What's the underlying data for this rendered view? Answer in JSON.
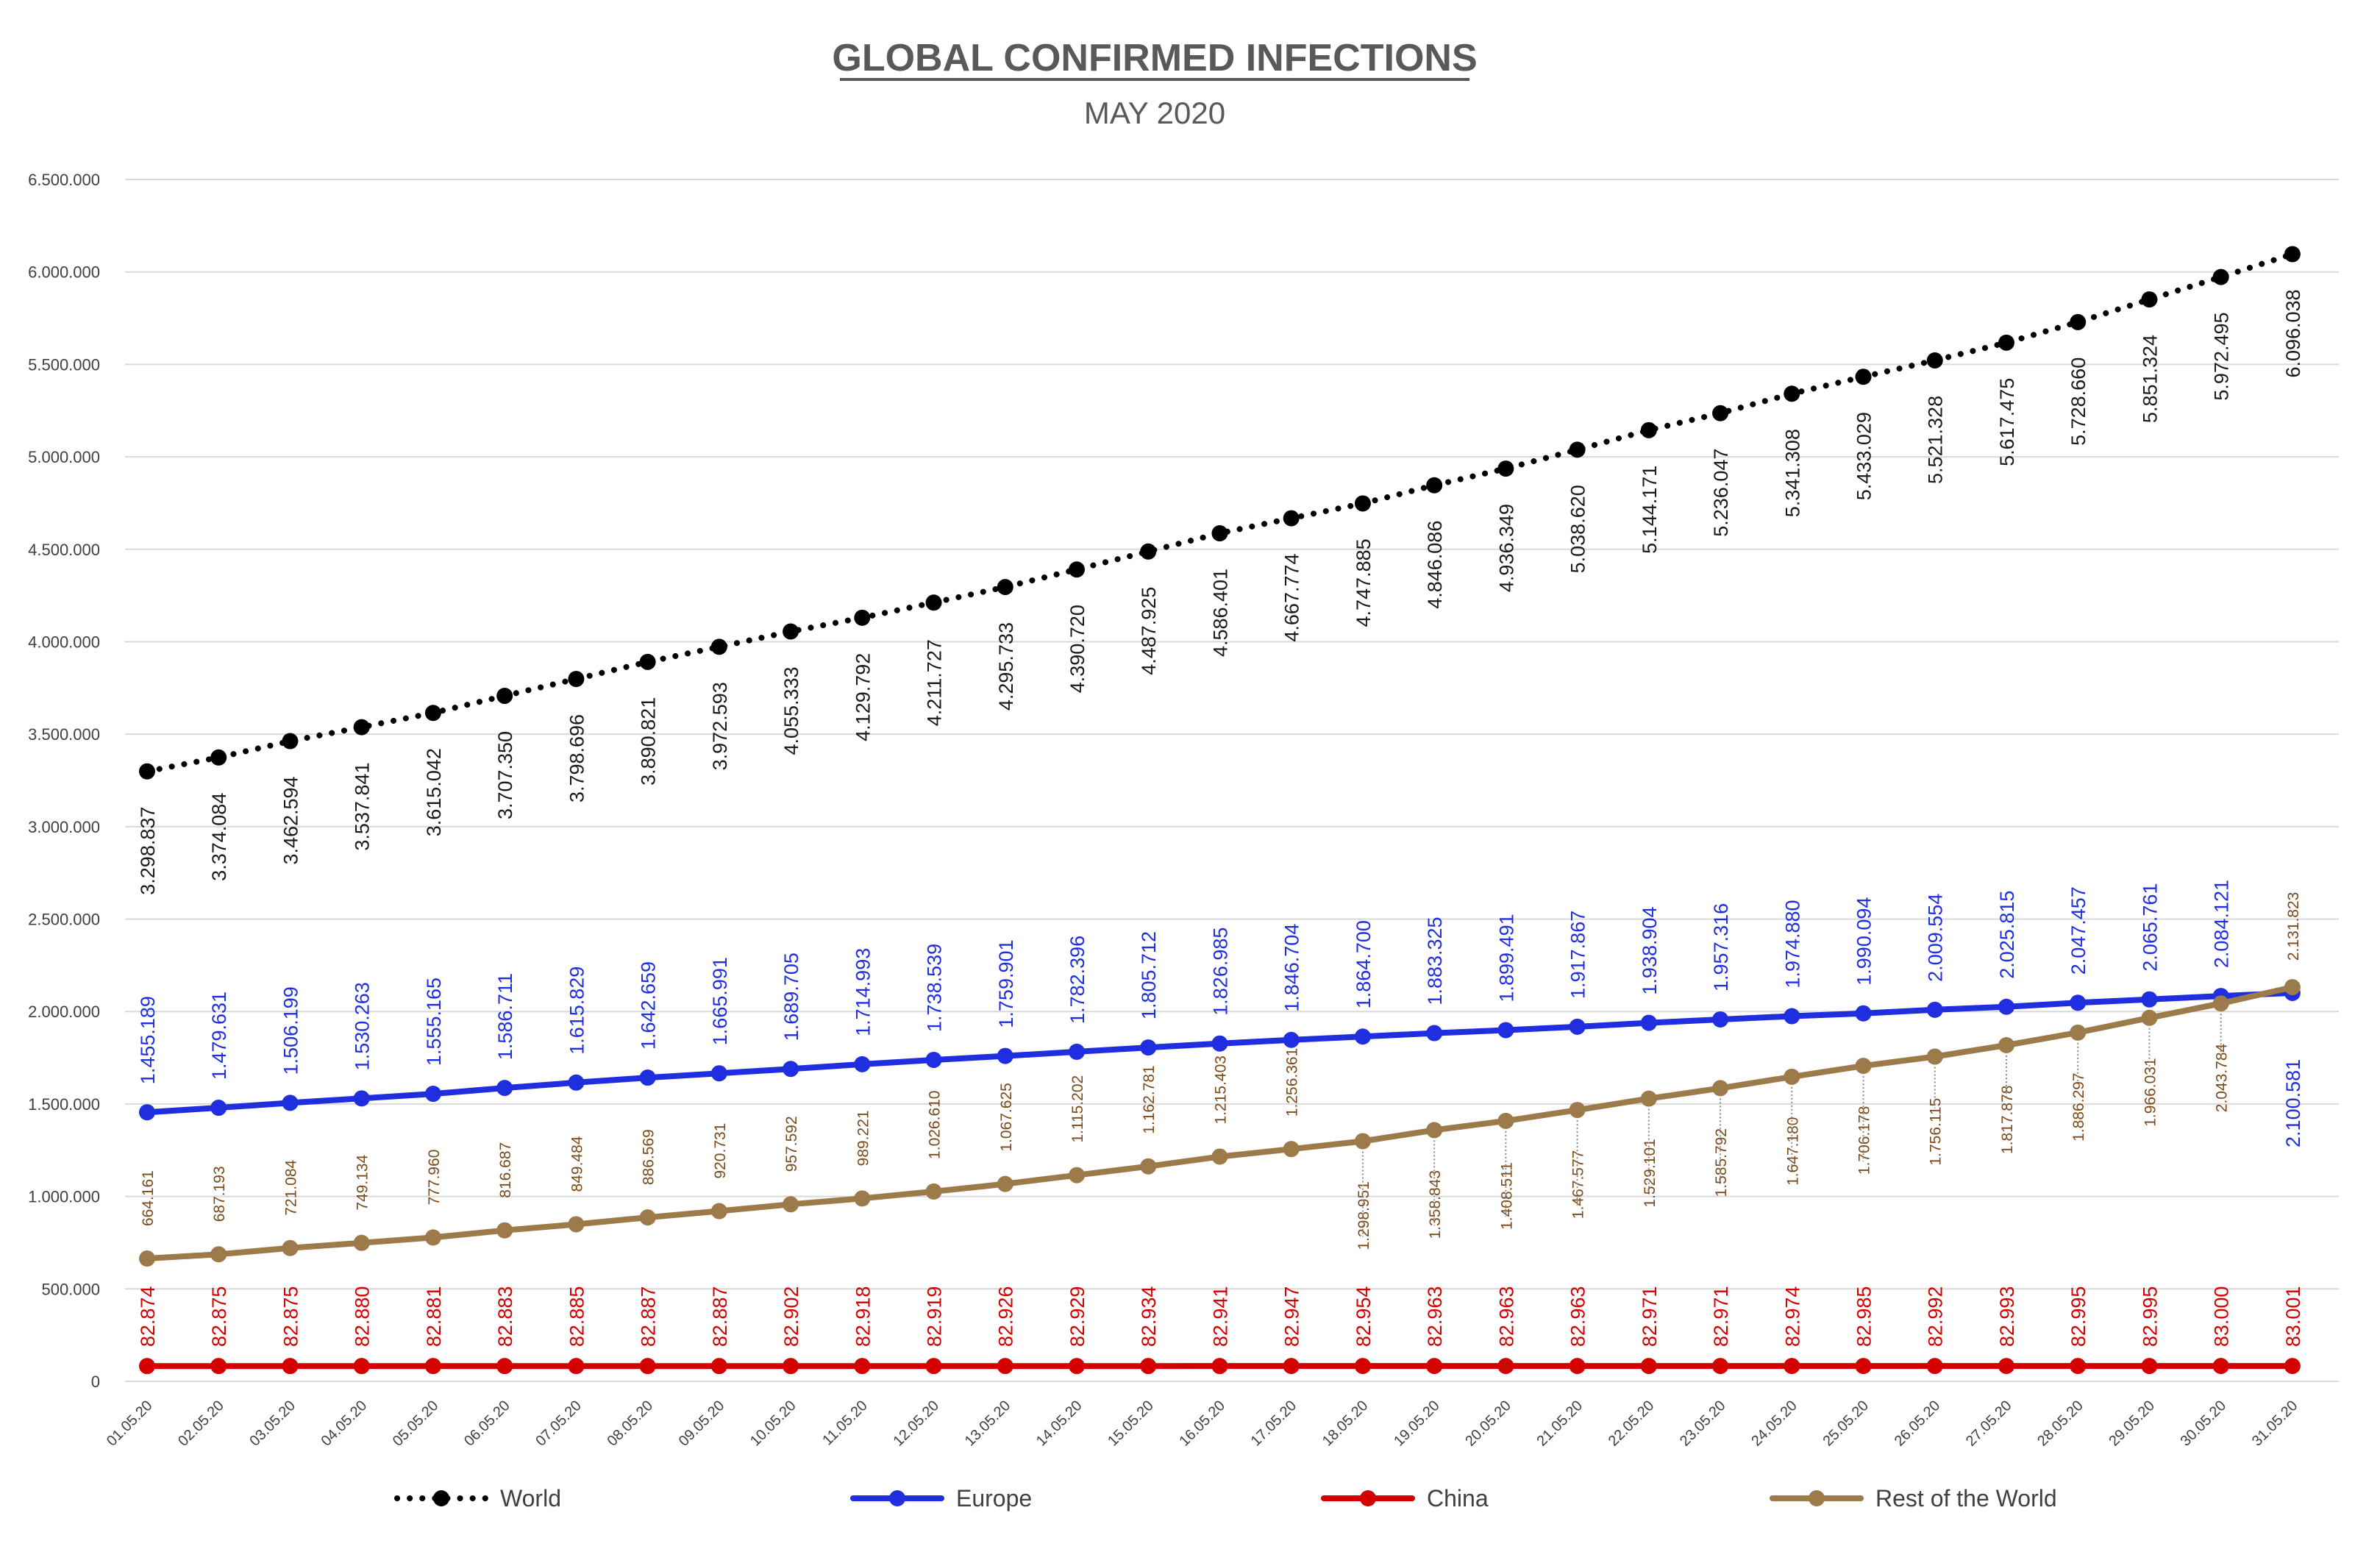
{
  "chart_data": {
    "type": "line",
    "title": "GLOBAL CONFIRMED INFECTIONS",
    "subtitle": "MAY 2020",
    "xlabel": "",
    "ylabel": "",
    "ylim": [
      0,
      6500000
    ],
    "yticks": [
      0,
      500000,
      1000000,
      1500000,
      2000000,
      2500000,
      3000000,
      3500000,
      4000000,
      4500000,
      5000000,
      5500000,
      6000000,
      6500000
    ],
    "ytick_labels": [
      "0",
      "500.000",
      "1.000.000",
      "1.500.000",
      "2.000.000",
      "2.500.000",
      "3.000.000",
      "3.500.000",
      "4.000.000",
      "4.500.000",
      "5.000.000",
      "5.500.000",
      "6.000.000",
      "6.500.000"
    ],
    "grid": true,
    "legend_position": "bottom",
    "categories": [
      "01.05.20",
      "02.05.20",
      "03.05.20",
      "04.05.20",
      "05.05.20",
      "06.05.20",
      "07.05.20",
      "08.05.20",
      "09.05.20",
      "10.05.20",
      "11.05.20",
      "12.05.20",
      "13.05.20",
      "14.05.20",
      "15.05.20",
      "16.05.20",
      "17.05.20",
      "18.05.20",
      "19.05.20",
      "20.05.20",
      "21.05.20",
      "22.05.20",
      "23.05.20",
      "24.05.20",
      "25.05.20",
      "26.05.20",
      "27.05.20",
      "28.05.20",
      "29.05.20",
      "30.05.20",
      "31.05.20"
    ],
    "series": [
      {
        "name": "World",
        "color": "#000000",
        "style": "dotted",
        "values": [
          3298837,
          3374084,
          3462594,
          3537841,
          3615042,
          3707350,
          3798696,
          3890821,
          3972593,
          4055333,
          4129792,
          4211727,
          4295733,
          4390720,
          4487925,
          4586401,
          4667774,
          4747885,
          4846086,
          4936349,
          5038620,
          5144171,
          5236047,
          5341308,
          5433029,
          5521328,
          5617475,
          5728660,
          5851324,
          5972495,
          6096038
        ],
        "labels": [
          "3.298.837",
          "3.374.084",
          "3.462.594",
          "3.537.841",
          "3.615.042",
          "3.707.350",
          "3.798.696",
          "3.890.821",
          "3.972.593",
          "4.055.333",
          "4.129.792",
          "4.211.727",
          "4.295.733",
          "4.390.720",
          "4.487.925",
          "4.586.401",
          "4.667.774",
          "4.747.885",
          "4.846.086",
          "4.936.349",
          "5.038.620",
          "5.144.171",
          "5.236.047",
          "5.341.308",
          "5.433.029",
          "5.521.328",
          "5.617.475",
          "5.728.660",
          "5.851.324",
          "5.972.495",
          "6.096.038"
        ]
      },
      {
        "name": "Europe",
        "color": "#1f2fe0",
        "style": "solid",
        "values": [
          1455189,
          1479631,
          1506199,
          1530263,
          1555165,
          1586711,
          1615829,
          1642659,
          1665991,
          1689705,
          1714993,
          1738539,
          1759901,
          1782396,
          1805712,
          1826985,
          1846704,
          1864700,
          1883325,
          1899491,
          1917867,
          1938904,
          1957316,
          1974880,
          1990094,
          2009554,
          2025815,
          2047457,
          2065761,
          2084121,
          2100581
        ],
        "labels": [
          "1.455.189",
          "1.479.631",
          "1.506.199",
          "1.530.263",
          "1.555.165",
          "1.586.711",
          "1.615.829",
          "1.642.659",
          "1.665.991",
          "1.689.705",
          "1.714.993",
          "1.738.539",
          "1.759.901",
          "1.782.396",
          "1.805.712",
          "1.826.985",
          "1.846.704",
          "1.864.700",
          "1.883.325",
          "1.899.491",
          "1.917.867",
          "1.938.904",
          "1.957.316",
          "1.974.880",
          "1.990.094",
          "2.009.554",
          "2.025.815",
          "2.047.457",
          "2.065.761",
          "2.084.121",
          "2.100.581"
        ]
      },
      {
        "name": "China",
        "color": "#d40000",
        "style": "solid",
        "values": [
          82874,
          82875,
          82875,
          82880,
          82881,
          82883,
          82885,
          82887,
          82887,
          82902,
          82918,
          82919,
          82926,
          82929,
          82934,
          82941,
          82947,
          82954,
          82963,
          82963,
          82963,
          82971,
          82971,
          82974,
          82985,
          82992,
          82993,
          82995,
          82995,
          83000,
          83001
        ],
        "labels": [
          "82.874",
          "82.875",
          "82.875",
          "82.880",
          "82.881",
          "82.883",
          "82.885",
          "82.887",
          "82.887",
          "82.902",
          "82.918",
          "82.919",
          "82.926",
          "82.929",
          "82.934",
          "82.941",
          "82.947",
          "82.954",
          "82.963",
          "82.963",
          "82.963",
          "82.971",
          "82.971",
          "82.974",
          "82.985",
          "82.992",
          "82.993",
          "82.995",
          "82.995",
          "83.000",
          "83.001"
        ]
      },
      {
        "name": "Rest of the World",
        "color": "#9c7a4a",
        "style": "solid",
        "values": [
          664161,
          687193,
          721084,
          749134,
          777960,
          816687,
          849484,
          886569,
          920731,
          957592,
          989221,
          1026610,
          1067625,
          1115202,
          1162781,
          1215403,
          1256361,
          1298951,
          1358843,
          1408511,
          1467577,
          1529101,
          1585792,
          1647180,
          1706178,
          1756115,
          1817878,
          1886297,
          1966031,
          2043784,
          2131823
        ],
        "labels": [
          "664.161",
          "687.193",
          "721.084",
          "749.134",
          "777.960",
          "816.687",
          "849.484",
          "886.569",
          "920.731",
          "957.592",
          "989.221",
          "1.026.610",
          "1.067.625",
          "1.115.202",
          "1.162.781",
          "1.215.403",
          "1.256.361",
          "1.298.951",
          "1.358.843",
          "1.408.511",
          "1.467.577",
          "1.529.101",
          "1.585.792",
          "1.647.180",
          "1.706.178",
          "1.756.115",
          "1.817.878",
          "1.886.297",
          "1.966.031",
          "2.043.784",
          "2.131.823"
        ]
      }
    ]
  }
}
